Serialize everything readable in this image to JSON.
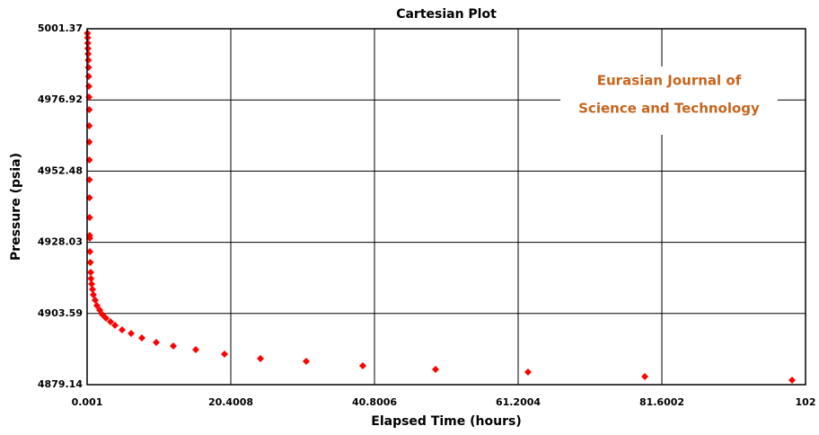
{
  "chart_data": {
    "type": "scatter",
    "title": "Cartesian Plot",
    "x_label": "Elapsed Time (hours)",
    "y_label": "Pressure (psia)",
    "annotation": [
      "Eurasian Journal of",
      "Science and Technology"
    ],
    "color": "#ff0000",
    "grid": true,
    "xlim": [
      0.001,
      102
    ],
    "ylim": [
      4879.14,
      5001.37
    ],
    "xticks": [
      0.001,
      20.4008,
      40.8006,
      61.2004,
      81.6002,
      102
    ],
    "yticks": [
      4879.14,
      4903.59,
      4928.03,
      4952.48,
      4976.92,
      5001.37
    ],
    "x": [
      0.05,
      0.08,
      0.1,
      0.12,
      0.15,
      0.18,
      0.2,
      0.22,
      0.25,
      0.27,
      0.3,
      0.3,
      0.3,
      0.32,
      0.32,
      0.33,
      0.35,
      0.36,
      0.38,
      0.4,
      0.45,
      0.51,
      0.55,
      0.64,
      0.77,
      0.89,
      1.15,
      1.4,
      1.79,
      2.17,
      2.68,
      3.32,
      3.96,
      4.97,
      6.25,
      7.78,
      9.82,
      12.24,
      15.43,
      19.51,
      24.61,
      31.11,
      39.14,
      49.47,
      62.6,
      79.18,
      100.09
    ],
    "values": [
      4999.83,
      4998.28,
      4996.43,
      4994.58,
      4992.73,
      4990.57,
      4988.1,
      4985.01,
      4981.62,
      4977.92,
      4973.59,
      4968.04,
      4962.48,
      4956.31,
      4949.52,
      4943.35,
      4936.56,
      4930.38,
      4929.46,
      4924.83,
      4921.12,
      4917.73,
      4915.57,
      4913.72,
      4911.87,
      4910.02,
      4908.16,
      4906.31,
      4904.77,
      4903.23,
      4901.99,
      4900.76,
      4899.52,
      4897.98,
      4896.74,
      4895.2,
      4893.66,
      4892.42,
      4891.19,
      4889.65,
      4888.1,
      4887.18,
      4885.63,
      4884.4,
      4883.47,
      4881.93,
      4880.69
    ]
  }
}
